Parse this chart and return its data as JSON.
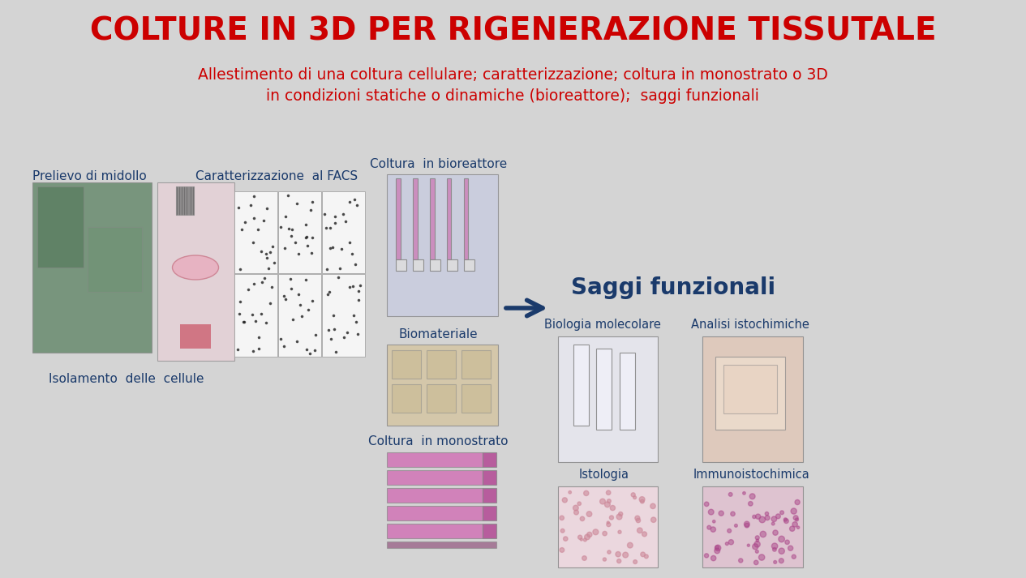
{
  "title": "COLTURE IN 3D PER RIGENERAZIONE TISSUTALE",
  "subtitle_line1": "Allestimento di una coltura cellulare; caratterizzazione; coltura in monostrato o 3D",
  "subtitle_line2": "in condizioni statiche o dinamiche (bioreattore);  saggi funzionali",
  "bg_color": "#d4d4d4",
  "title_color": "#cc0000",
  "subtitle_color": "#cc0000",
  "label_color": "#1a3a6b",
  "saggi_color": "#1a3a6b",
  "labels": {
    "prelievo": "Prelievo di midollo",
    "isolamento": "Isolamento  delle  cellule",
    "caratterizzazione": "Caratterizzazione  al FACS",
    "bioreattore": "Coltura  in bioreattore",
    "biomateriale": "Biomateriale",
    "monostrato": "Coltura  in monostrato",
    "saggi": "Saggi funzionali",
    "bio_molecolare": "Biologia molecolare",
    "analisi": "Analisi istochimiche",
    "istologia": "Istologia",
    "immuno": "Immunoistochimica"
  }
}
